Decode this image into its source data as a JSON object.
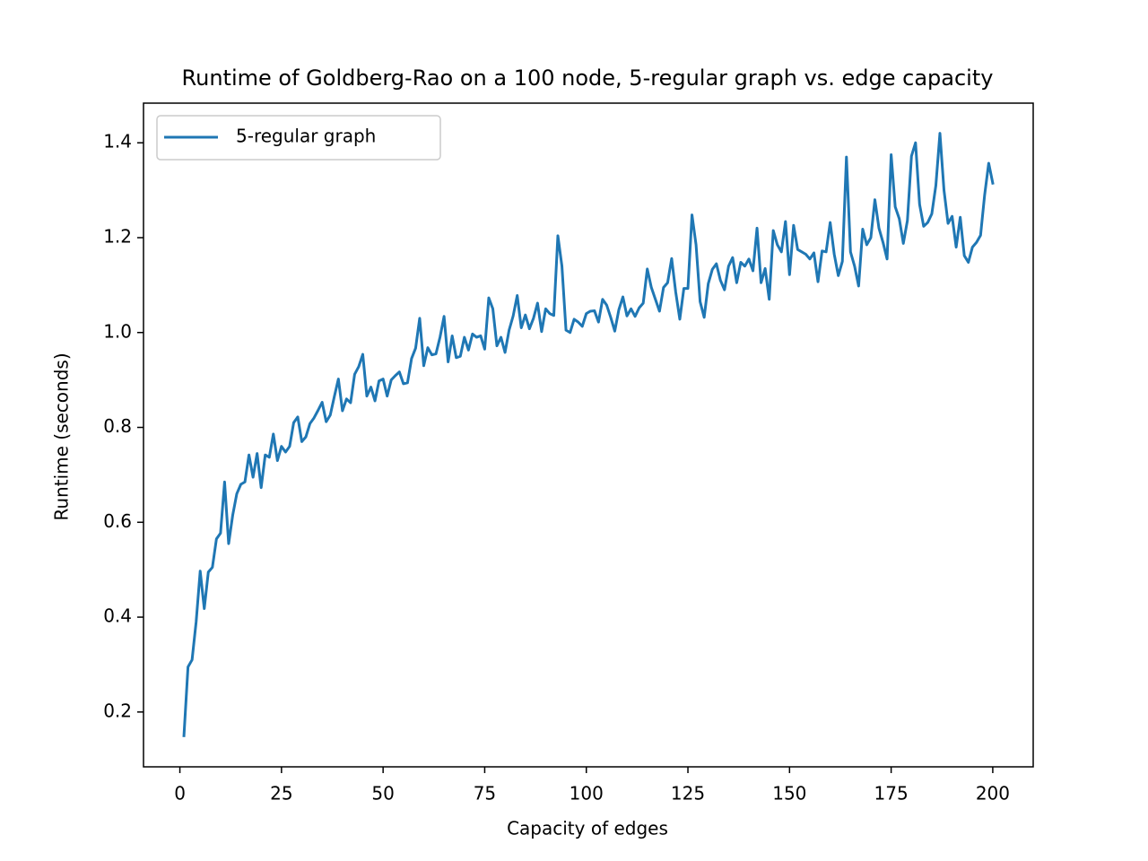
{
  "chart_data": {
    "type": "line",
    "title": "Runtime of Goldberg-Rao on a 100 node, 5-regular graph vs. edge capacity",
    "x_label": "Capacity of edges",
    "y_label": "Runtime (seconds)",
    "x": [
      1,
      2,
      3,
      4,
      5,
      6,
      7,
      8,
      9,
      10,
      11,
      12,
      13,
      14,
      15,
      16,
      17,
      18,
      19,
      20,
      21,
      22,
      23,
      24,
      25,
      26,
      27,
      28,
      29,
      30,
      31,
      32,
      33,
      34,
      35,
      36,
      37,
      38,
      39,
      40,
      41,
      42,
      43,
      44,
      45,
      46,
      47,
      48,
      49,
      50,
      51,
      52,
      53,
      54,
      55,
      56,
      57,
      58,
      59,
      60,
      61,
      62,
      63,
      64,
      65,
      66,
      67,
      68,
      69,
      70,
      71,
      72,
      73,
      74,
      75,
      76,
      77,
      78,
      79,
      80,
      81,
      82,
      83,
      84,
      85,
      86,
      87,
      88,
      89,
      90,
      91,
      92,
      93,
      94,
      95,
      96,
      97,
      98,
      99,
      100,
      101,
      102,
      103,
      104,
      105,
      106,
      107,
      108,
      109,
      110,
      111,
      112,
      113,
      114,
      115,
      116,
      117,
      118,
      119,
      120,
      121,
      122,
      123,
      124,
      125,
      126,
      127,
      128,
      129,
      130,
      131,
      132,
      133,
      134,
      135,
      136,
      137,
      138,
      139,
      140,
      141,
      142,
      143,
      144,
      145,
      146,
      147,
      148,
      149,
      150,
      151,
      152,
      153,
      154,
      155,
      156,
      157,
      158,
      159,
      160,
      161,
      162,
      163,
      164,
      165,
      166,
      167,
      168,
      169,
      170,
      171,
      172,
      173,
      174,
      175,
      176,
      177,
      178,
      179,
      180,
      181,
      182,
      183,
      184,
      185,
      186,
      187,
      188,
      189,
      190,
      191,
      192,
      193,
      194,
      195,
      196,
      197,
      198,
      199,
      200
    ],
    "series": [
      {
        "name": "5-regular graph",
        "color": "#1f77b4",
        "values": [
          0.15,
          0.295,
          0.31,
          0.39,
          0.497,
          0.418,
          0.495,
          0.505,
          0.565,
          0.577,
          0.685,
          0.555,
          0.615,
          0.66,
          0.68,
          0.685,
          0.742,
          0.695,
          0.745,
          0.673,
          0.742,
          0.737,
          0.786,
          0.73,
          0.76,
          0.748,
          0.76,
          0.81,
          0.822,
          0.77,
          0.78,
          0.808,
          0.82,
          0.836,
          0.853,
          0.812,
          0.826,
          0.865,
          0.902,
          0.835,
          0.86,
          0.852,
          0.912,
          0.928,
          0.954,
          0.866,
          0.885,
          0.856,
          0.898,
          0.902,
          0.866,
          0.9,
          0.909,
          0.917,
          0.892,
          0.894,
          0.945,
          0.967,
          1.03,
          0.93,
          0.968,
          0.953,
          0.955,
          0.99,
          1.034,
          0.938,
          0.993,
          0.947,
          0.95,
          0.99,
          0.963,
          0.997,
          0.99,
          0.993,
          0.965,
          1.073,
          1.05,
          0.972,
          0.99,
          0.958,
          1.005,
          1.035,
          1.078,
          1.01,
          1.037,
          1.008,
          1.03,
          1.062,
          1.002,
          1.05,
          1.04,
          1.036,
          1.204,
          1.14,
          1.005,
          1.0,
          1.028,
          1.022,
          1.013,
          1.04,
          1.045,
          1.046,
          1.022,
          1.07,
          1.058,
          1.032,
          1.003,
          1.048,
          1.075,
          1.035,
          1.05,
          1.034,
          1.052,
          1.062,
          1.134,
          1.095,
          1.07,
          1.045,
          1.095,
          1.105,
          1.156,
          1.085,
          1.028,
          1.093,
          1.093,
          1.248,
          1.185,
          1.065,
          1.032,
          1.103,
          1.133,
          1.145,
          1.11,
          1.09,
          1.14,
          1.158,
          1.105,
          1.148,
          1.14,
          1.155,
          1.13,
          1.22,
          1.105,
          1.135,
          1.07,
          1.215,
          1.185,
          1.17,
          1.234,
          1.122,
          1.226,
          1.175,
          1.17,
          1.165,
          1.155,
          1.168,
          1.107,
          1.172,
          1.17,
          1.232,
          1.165,
          1.12,
          1.15,
          1.37,
          1.17,
          1.14,
          1.098,
          1.218,
          1.185,
          1.2,
          1.28,
          1.22,
          1.19,
          1.155,
          1.375,
          1.265,
          1.24,
          1.188,
          1.236,
          1.372,
          1.4,
          1.27,
          1.224,
          1.232,
          1.25,
          1.31,
          1.42,
          1.3,
          1.23,
          1.245,
          1.18,
          1.243,
          1.162,
          1.148,
          1.18,
          1.19,
          1.205,
          1.29,
          1.357,
          1.315
        ]
      }
    ],
    "xlim": [
      -8.95,
      209.95
    ],
    "xticks": [
      0,
      25,
      50,
      75,
      100,
      125,
      150,
      175,
      200
    ],
    "ylim": [
      0.0844,
      1.4836
    ],
    "yticks": [
      0.2,
      0.4,
      0.6,
      0.8,
      {
        "value": 1,
        "label": "1.0"
      },
      1.2,
      1.4
    ],
    "legend": "upper left",
    "grid": false
  }
}
